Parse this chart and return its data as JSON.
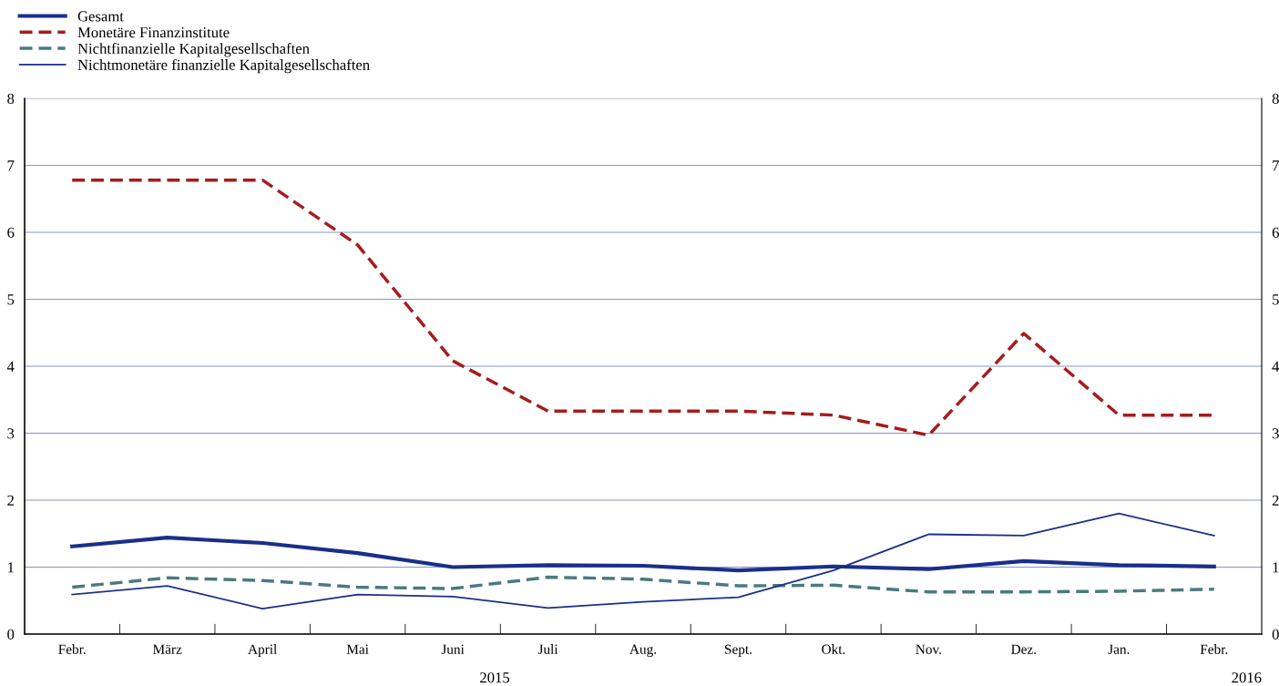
{
  "chart_data": {
    "type": "line",
    "categories": [
      "Febr.",
      "März",
      "April",
      "Mai",
      "Juni",
      "Juli",
      "Aug.",
      "Sept.",
      "Okt.",
      "Nov.",
      "Dez.",
      "Jan.",
      "Febr."
    ],
    "series": [
      {
        "name": "Gesamt",
        "color": "#1a2f8a",
        "line_style": "solid",
        "values": [
          1.31,
          1.44,
          1.36,
          1.21,
          1.0,
          1.03,
          1.02,
          0.95,
          1.01,
          0.97,
          1.09,
          1.03,
          1.01
        ]
      },
      {
        "name": "Monetäre Finanzinstitute",
        "color": "#a51c1c",
        "line_style": "dashed",
        "values": [
          6.78,
          6.78,
          6.78,
          5.81,
          4.08,
          3.33,
          3.33,
          3.33,
          3.27,
          2.97,
          4.49,
          3.27,
          3.27
        ]
      },
      {
        "name": "Nichtfinanzielle Kapitalgesellschaften",
        "color": "#4a7a80",
        "line_style": "dashed",
        "values": [
          0.7,
          0.84,
          0.8,
          0.7,
          0.68,
          0.85,
          0.82,
          0.72,
          0.73,
          0.63,
          0.63,
          0.64,
          0.67
        ]
      },
      {
        "name": "Nichtmonetäre finanzielle Kapitalgesellschaften",
        "color": "#1a2f8a",
        "line_style": "solid",
        "values": [
          0.59,
          0.72,
          0.38,
          0.59,
          0.56,
          0.39,
          0.48,
          0.55,
          0.95,
          1.49,
          1.47,
          1.8,
          1.47
        ]
      }
    ],
    "ylim": [
      0,
      8
    ],
    "yticks": [
      0,
      1,
      2,
      3,
      4,
      5,
      6,
      7,
      8
    ],
    "y2lim": [
      0,
      8
    ],
    "y2ticks": [
      0,
      1,
      2,
      3,
      4,
      5,
      6,
      7,
      8
    ],
    "grid": "y",
    "legend": "top left",
    "marker": "none",
    "annotations": [
      "2015",
      "2016"
    ]
  }
}
